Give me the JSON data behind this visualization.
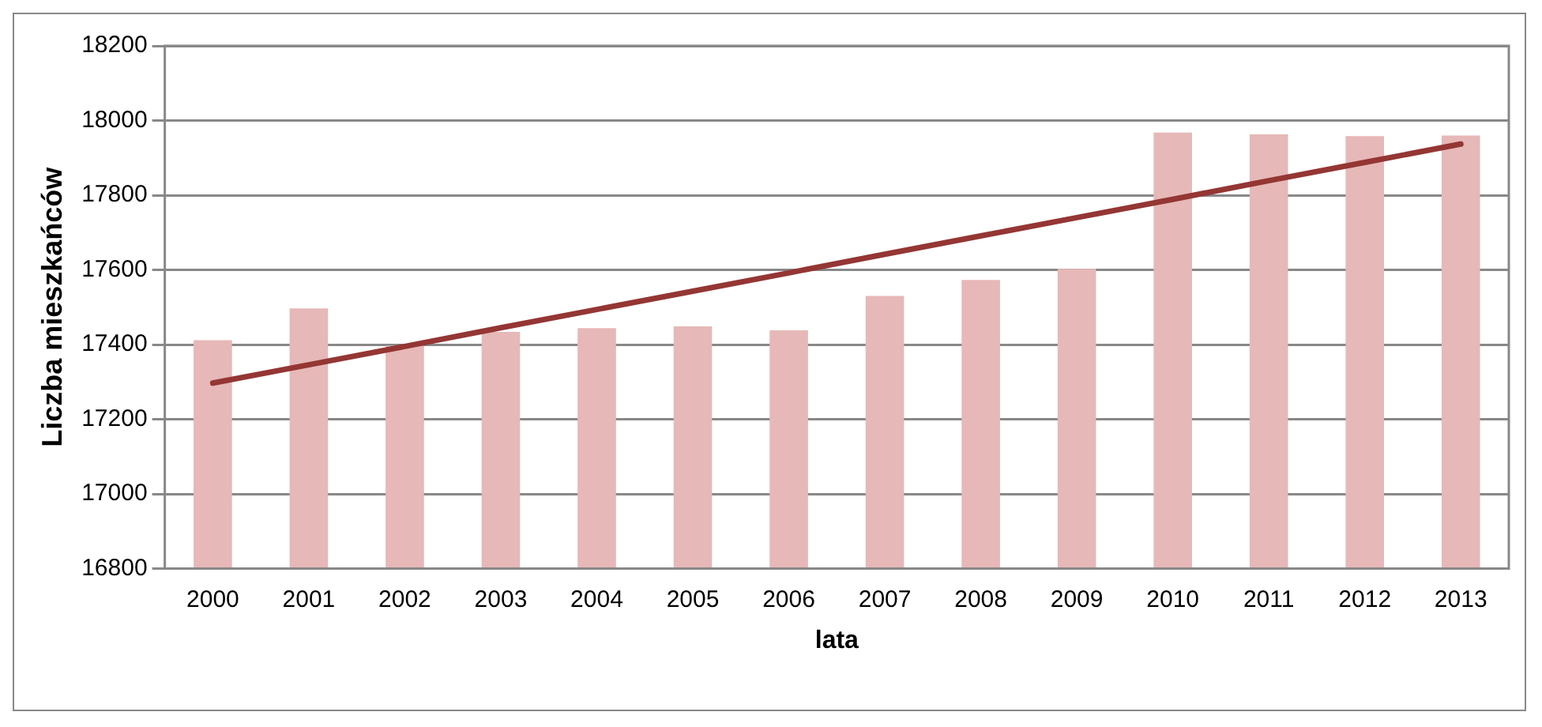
{
  "chart_data": {
    "type": "bar",
    "xlabel": "lata",
    "ylabel": "Liczba mieszkańców",
    "categories": [
      "2000",
      "2001",
      "2002",
      "2003",
      "2004",
      "2005",
      "2006",
      "2007",
      "2008",
      "2009",
      "2010",
      "2011",
      "2012",
      "2013"
    ],
    "series": [
      {
        "color": "#e6b8b7",
        "values": [
          17412,
          17497,
          17397,
          17434,
          17444,
          17449,
          17438,
          17530,
          17573,
          17603,
          17968,
          17963,
          17958,
          17960
        ]
      },
      {
        "type": "line",
        "color": "#943634",
        "values": [
          17297,
          17346,
          17395,
          17445,
          17494,
          17543,
          17592,
          17642,
          17691,
          17740,
          17789,
          17839,
          17888,
          17937
        ]
      }
    ],
    "ylim": [
      16800,
      18200
    ],
    "yticks": [
      16800,
      17000,
      17200,
      17400,
      17600,
      17800,
      18000,
      18200
    ],
    "grid": "y",
    "legend": false
  }
}
